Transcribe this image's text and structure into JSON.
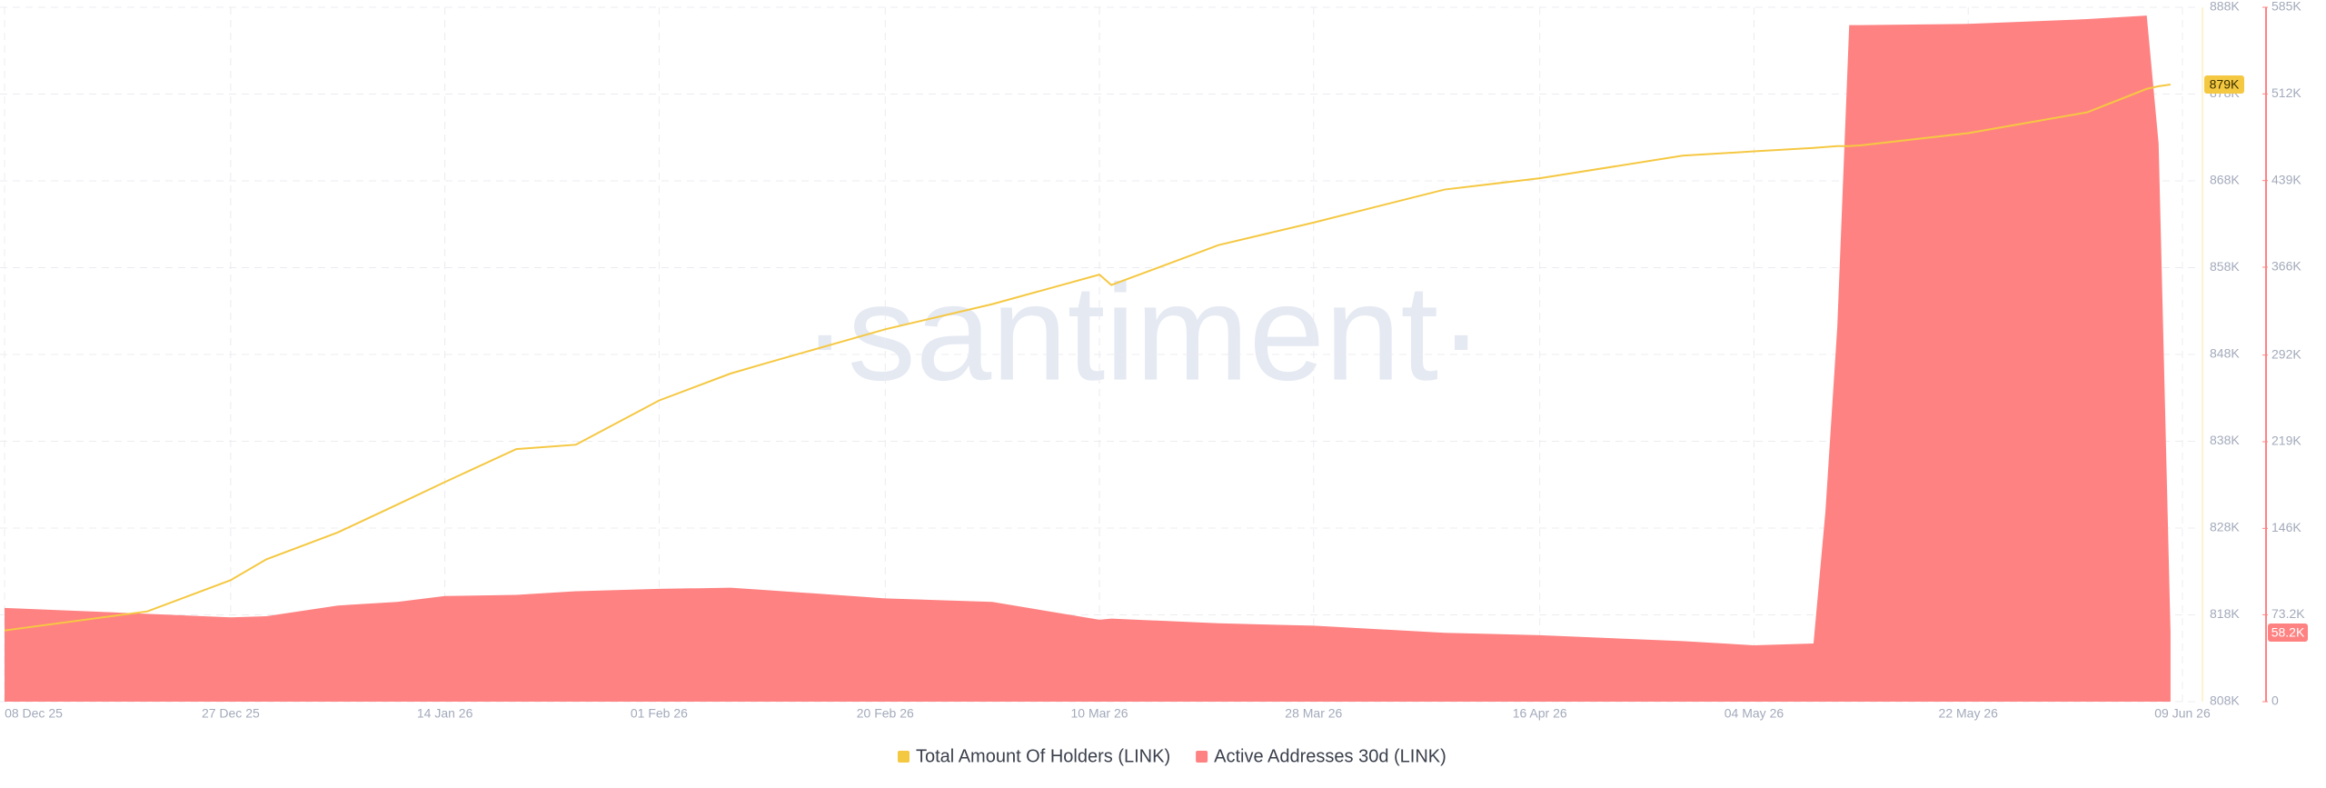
{
  "chart_data": {
    "type": "line-area",
    "watermark": "·santiment·",
    "x": [
      "08 Dec 25",
      "20 Dec 25",
      "27 Dec 25",
      "30 Dec 25",
      "05 Jan 26",
      "10 Jan 26",
      "14 Jan 26",
      "20 Jan 26",
      "25 Jan 26",
      "01 Feb 26",
      "07 Feb 26",
      "10 Feb 26",
      "20 Feb 26",
      "01 Mar 26",
      "10 Mar 26",
      "11 Mar 26",
      "20 Mar 26",
      "28 Mar 26",
      "08 Apr 26",
      "16 Apr 26",
      "28 Apr 26",
      "04 May 26",
      "09 May 26",
      "10 May 26",
      "11 May 26",
      "12 May 26",
      "13 May 26",
      "22 May 26",
      "01 Jun 26",
      "06 Jun 26",
      "07 Jun 26",
      "08 Jun 26"
    ],
    "xticks": [
      "08 Dec 25",
      "27 Dec 25",
      "14 Jan 26",
      "01 Feb 26",
      "20 Feb 26",
      "10 Mar 26",
      "28 Mar 26",
      "16 Apr 26",
      "04 May 26",
      "22 May 26",
      "09 Jun 26"
    ],
    "series": [
      {
        "name": "Total Amount Of Holders (LINK)",
        "color": "#f5c842",
        "kind": "line",
        "axis": "y",
        "values": [
          816200,
          818400,
          822000,
          824400,
          827500,
          830700,
          833300,
          837100,
          837600,
          842700,
          845800,
          847000,
          850900,
          853800,
          857200,
          856000,
          860600,
          863200,
          867000,
          868300,
          870900,
          871400,
          871800,
          871900,
          872000,
          872000,
          872100,
          873500,
          875900,
          878600,
          878900,
          879100
        ],
        "last_label": "879K"
      },
      {
        "name": "Active Addresses 30d (LINK)",
        "color": "#ff8282",
        "kind": "area",
        "axis": "y2",
        "values": [
          79000,
          74000,
          71000,
          72000,
          81000,
          84000,
          89000,
          90000,
          93000,
          95000,
          96000,
          94000,
          87000,
          84000,
          69000,
          70000,
          66000,
          64000,
          58000,
          56000,
          51000,
          47500,
          49000,
          160000,
          316000,
          570000,
          570000,
          571000,
          575000,
          578000,
          470000,
          58200
        ],
        "last_label": "58.2K"
      }
    ],
    "ylim": [
      808000,
      888000
    ],
    "yticks": [
      {
        "value": 808000,
        "label": "808K"
      },
      {
        "value": 818000,
        "label": "818K"
      },
      {
        "value": 828000,
        "label": "828K"
      },
      {
        "value": 838000,
        "label": "838K"
      },
      {
        "value": 848000,
        "label": "848K"
      },
      {
        "value": 858000,
        "label": "858K"
      },
      {
        "value": 868000,
        "label": "868K"
      },
      {
        "value": 878000,
        "label": "878K"
      },
      {
        "value": 888000,
        "label": "888K"
      }
    ],
    "y2lim": [
      0,
      585000
    ],
    "y2ticks": [
      0,
      {
        "value": 73200,
        "label": "73.2K"
      },
      {
        "value": 146000,
        "label": "146K"
      },
      {
        "value": 219000,
        "label": "219K"
      },
      {
        "value": 292000,
        "label": "292K"
      },
      {
        "value": 366000,
        "label": "366K"
      },
      {
        "value": 439000,
        "label": "439K"
      },
      {
        "value": 512000,
        "label": "512K"
      },
      {
        "value": 585000,
        "label": "585K"
      }
    ],
    "grid": true
  }
}
